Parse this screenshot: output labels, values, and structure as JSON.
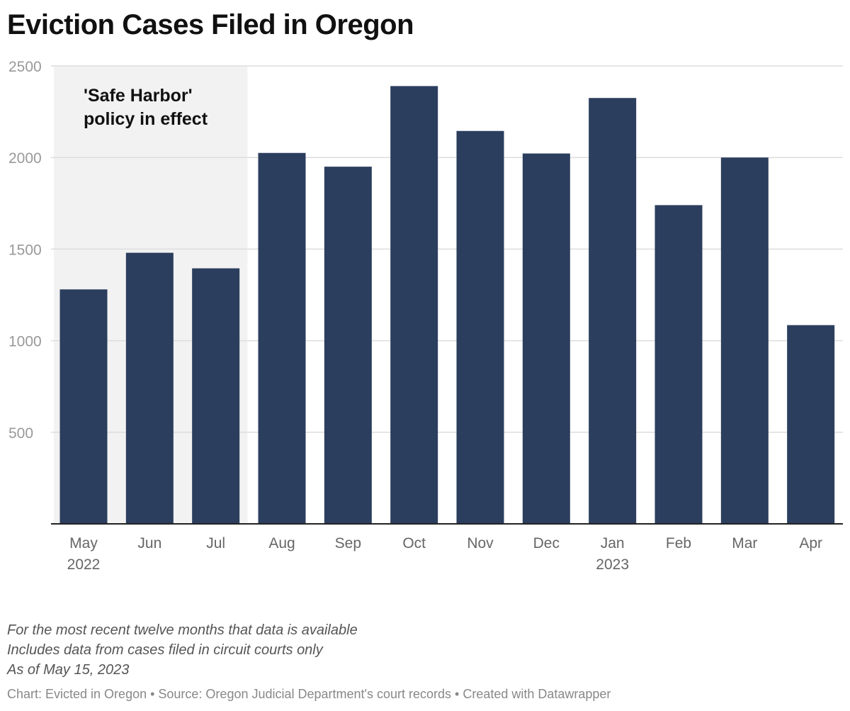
{
  "chart_data": {
    "type": "bar",
    "title": "Eviction Cases Filed in Oregon",
    "categories": [
      "May",
      "Jun",
      "Jul",
      "Aug",
      "Sep",
      "Oct",
      "Nov",
      "Dec",
      "Jan",
      "Feb",
      "Mar",
      "Apr"
    ],
    "category_sublabels": [
      "2022",
      "",
      "",
      "",
      "",
      "",
      "",
      "",
      "2023",
      "",
      "",
      ""
    ],
    "values": [
      1280,
      1480,
      1395,
      2025,
      1950,
      2390,
      2145,
      2022,
      2325,
      1740,
      2000,
      1085
    ],
    "ylim": [
      0,
      2500
    ],
    "yticks": [
      500,
      1000,
      1500,
      2000,
      2500
    ],
    "xlabel": "",
    "ylabel": "",
    "bar_color": "#2c3e5e",
    "shaded_region": {
      "from_category": "May",
      "to_category": "Jul",
      "label_lines": [
        "'Safe Harbor'",
        "policy in effect"
      ],
      "color": "#f2f2f2"
    }
  },
  "notes": [
    "For the most recent twelve months that data is available",
    "Includes data from cases filed in circuit courts only",
    "As of May 15, 2023"
  ],
  "credit": "Chart: Evicted in Oregon • Source: Oregon Judicial Department's court records • Created with Datawrapper"
}
